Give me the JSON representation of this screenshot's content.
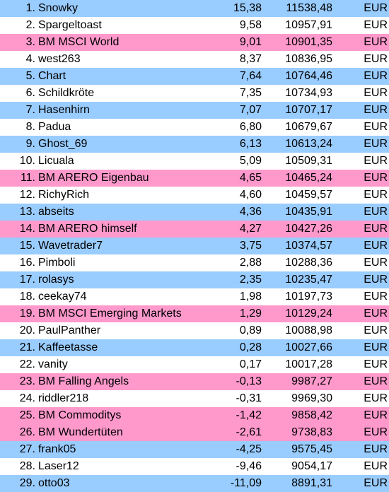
{
  "colors": {
    "blue": "#99ccff",
    "white": "#ffffff",
    "pink": "#ff99cc"
  },
  "rows": [
    {
      "rank": "1.",
      "name": "Snowky",
      "pct": "15,38",
      "value": "11538,48",
      "currency": "EUR",
      "color": "blue"
    },
    {
      "rank": "2.",
      "name": "Spargeltoast",
      "pct": "9,58",
      "value": "10957,91",
      "currency": "EUR",
      "color": "white"
    },
    {
      "rank": "3.",
      "name": "BM MSCI World",
      "pct": "9,01",
      "value": "10901,35",
      "currency": "EUR",
      "color": "pink"
    },
    {
      "rank": "4.",
      "name": "west263",
      "pct": "8,37",
      "value": "10836,95",
      "currency": "EUR",
      "color": "white"
    },
    {
      "rank": "5.",
      "name": "Chart",
      "pct": "7,64",
      "value": "10764,46",
      "currency": "EUR",
      "color": "blue"
    },
    {
      "rank": "6.",
      "name": "Schildkröte",
      "pct": "7,35",
      "value": "10734,93",
      "currency": "EUR",
      "color": "white"
    },
    {
      "rank": "7.",
      "name": "Hasenhirn",
      "pct": "7,07",
      "value": "10707,17",
      "currency": "EUR",
      "color": "blue"
    },
    {
      "rank": "8.",
      "name": "Padua",
      "pct": "6,80",
      "value": "10679,67",
      "currency": "EUR",
      "color": "white"
    },
    {
      "rank": "9.",
      "name": "Ghost_69",
      "pct": "6,13",
      "value": "10613,24",
      "currency": "EUR",
      "color": "blue"
    },
    {
      "rank": "10.",
      "name": "Licuala",
      "pct": "5,09",
      "value": "10509,31",
      "currency": "EUR",
      "color": "white"
    },
    {
      "rank": "11.",
      "name": "BM ARERO Eigenbau",
      "pct": "4,65",
      "value": "10465,24",
      "currency": "EUR",
      "color": "pink"
    },
    {
      "rank": "12.",
      "name": "RichyRich",
      "pct": "4,60",
      "value": "10459,57",
      "currency": "EUR",
      "color": "white"
    },
    {
      "rank": "13.",
      "name": "abseits",
      "pct": "4,36",
      "value": "10435,91",
      "currency": "EUR",
      "color": "blue"
    },
    {
      "rank": "14.",
      "name": "BM ARERO himself",
      "pct": "4,27",
      "value": "10427,26",
      "currency": "EUR",
      "color": "pink"
    },
    {
      "rank": "15.",
      "name": "Wavetrader7",
      "pct": "3,75",
      "value": "10374,57",
      "currency": "EUR",
      "color": "blue"
    },
    {
      "rank": "16.",
      "name": "Pimboli",
      "pct": "2,88",
      "value": "10288,36",
      "currency": "EUR",
      "color": "white"
    },
    {
      "rank": "17.",
      "name": "rolasys",
      "pct": "2,35",
      "value": "10235,47",
      "currency": "EUR",
      "color": "blue"
    },
    {
      "rank": "18.",
      "name": "ceekay74",
      "pct": "1,98",
      "value": "10197,73",
      "currency": "EUR",
      "color": "white"
    },
    {
      "rank": "19.",
      "name": "BM MSCI Emerging Markets",
      "pct": "1,29",
      "value": "10129,24",
      "currency": "EUR",
      "color": "pink"
    },
    {
      "rank": "20.",
      "name": "PaulPanther",
      "pct": "0,89",
      "value": "10088,98",
      "currency": "EUR",
      "color": "white"
    },
    {
      "rank": "21.",
      "name": "Kaffeetasse",
      "pct": "0,28",
      "value": "10027,66",
      "currency": "EUR",
      "color": "blue"
    },
    {
      "rank": "22.",
      "name": "vanity",
      "pct": "0,17",
      "value": "10017,28",
      "currency": "EUR",
      "color": "white"
    },
    {
      "rank": "23.",
      "name": "BM Falling Angels",
      "pct": "-0,13",
      "value": "9987,27",
      "currency": "EUR",
      "color": "pink"
    },
    {
      "rank": "24.",
      "name": "riddler218",
      "pct": "-0,31",
      "value": "9969,30",
      "currency": "EUR",
      "color": "white"
    },
    {
      "rank": "25.",
      "name": "BM Commoditys",
      "pct": "-1,42",
      "value": "9858,42",
      "currency": "EUR",
      "color": "pink"
    },
    {
      "rank": "26.",
      "name": "BM Wundertüten",
      "pct": "-2,61",
      "value": "9738,83",
      "currency": "EUR",
      "color": "pink"
    },
    {
      "rank": "27.",
      "name": "frank05",
      "pct": "-4,25",
      "value": "9575,45",
      "currency": "EUR",
      "color": "blue"
    },
    {
      "rank": "28.",
      "name": "Laser12",
      "pct": "-9,46",
      "value": "9054,17",
      "currency": "EUR",
      "color": "white"
    },
    {
      "rank": "29.",
      "name": "otto03",
      "pct": "-11,09",
      "value": "8891,31",
      "currency": "EUR",
      "color": "blue"
    }
  ]
}
